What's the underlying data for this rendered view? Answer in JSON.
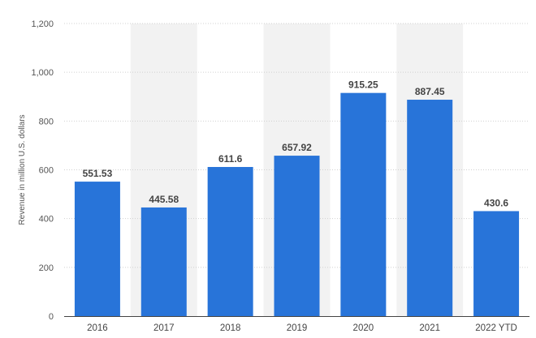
{
  "chart_data": {
    "type": "bar",
    "title": "",
    "xlabel": "",
    "ylabel": "Revenue in million U.S. dollars",
    "categories": [
      "2016",
      "2017",
      "2018",
      "2019",
      "2020",
      "2021",
      "2022 YTD"
    ],
    "values": [
      551.53,
      445.58,
      611.6,
      657.92,
      915.25,
      887.45,
      430.6
    ],
    "value_labels": [
      "551.53",
      "445.58",
      "611.6",
      "657.92",
      "915.25",
      "887.45",
      "430.6"
    ],
    "ylim": [
      0,
      1200
    ],
    "yticks": [
      0,
      200,
      400,
      600,
      800,
      1000,
      1200
    ],
    "ytick_labels": [
      "0",
      "200",
      "400",
      "600",
      "800",
      "1,000",
      "1,200"
    ],
    "grid": true,
    "alternate_column_shading": true,
    "colors": {
      "bar": "#2874d9",
      "band": "#f2f2f2",
      "grid": "#d0d0d0",
      "axis": "#444444"
    }
  }
}
